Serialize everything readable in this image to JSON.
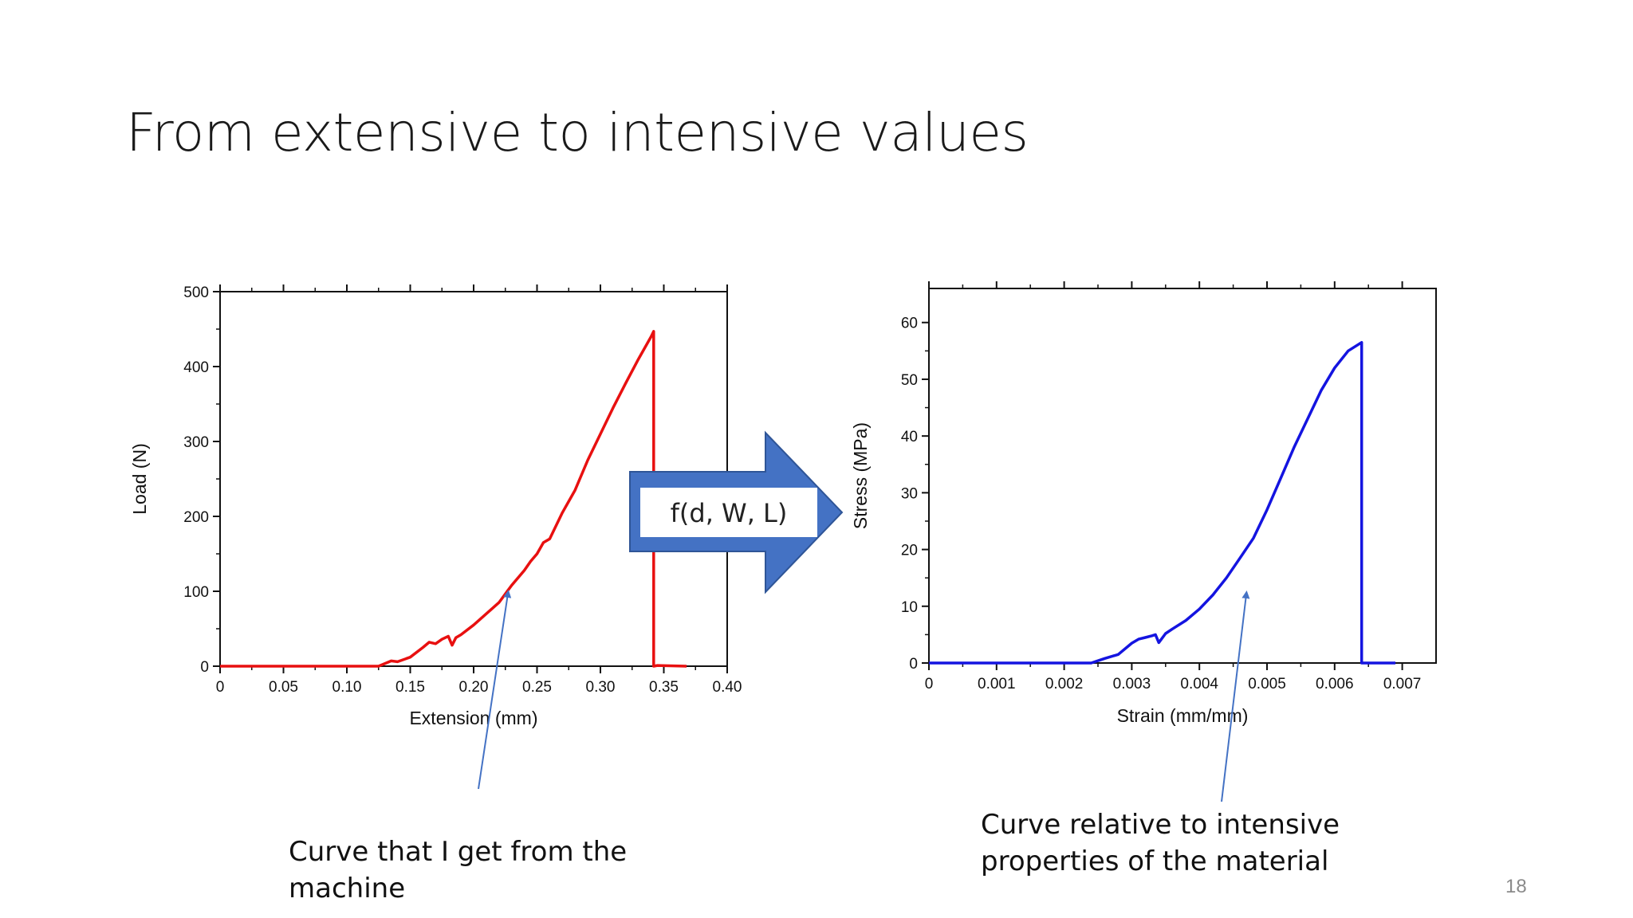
{
  "slide": {
    "title": "From extensive to intensive values",
    "page_number": "18",
    "left_caption_lines": [
      "Curve that I get from the",
      "machine"
    ],
    "right_caption_lines": [
      "Curve relative to intensive",
      "properties of the  material"
    ],
    "transform_label": "f(d, W, L)",
    "arrow_color": "#4472C4"
  },
  "chart_data": [
    {
      "type": "line",
      "title": "",
      "xlabel": "Extension (mm)",
      "ylabel": "Load (N)",
      "xlim": [
        0,
        0.4
      ],
      "ylim": [
        0,
        500
      ],
      "x_ticks": [
        0,
        0.05,
        0.1,
        0.15,
        0.2,
        0.25,
        0.3,
        0.35,
        0.4
      ],
      "x_tick_labels": [
        "0",
        "0.05",
        "0.10",
        "0.15",
        "0.20",
        "0.25",
        "0.30",
        "0.35",
        "0.40"
      ],
      "y_ticks": [
        0,
        100,
        200,
        300,
        400,
        500
      ],
      "y_tick_labels": [
        "0",
        "100",
        "200",
        "300",
        "400",
        "500"
      ],
      "color": "#E81010",
      "series": [
        {
          "name": "Load",
          "x": [
            0,
            0.125,
            0.135,
            0.14,
            0.15,
            0.16,
            0.165,
            0.17,
            0.175,
            0.18,
            0.183,
            0.186,
            0.19,
            0.2,
            0.21,
            0.22,
            0.23,
            0.24,
            0.245,
            0.25,
            0.255,
            0.26,
            0.27,
            0.28,
            0.29,
            0.3,
            0.31,
            0.32,
            0.33,
            0.34,
            0.342,
            0.342,
            0.345,
            0.368
          ],
          "y": [
            0,
            0,
            7,
            6,
            12,
            25,
            32,
            30,
            36,
            40,
            28,
            38,
            42,
            55,
            70,
            85,
            108,
            128,
            140,
            150,
            165,
            170,
            205,
            235,
            275,
            310,
            345,
            378,
            410,
            440,
            447,
            0,
            1,
            0
          ]
        }
      ]
    },
    {
      "type": "line",
      "title": "",
      "xlabel": "Strain (mm/mm)",
      "ylabel": "Stress (MPa)",
      "xlim": [
        0,
        0.0075
      ],
      "ylim": [
        0,
        66
      ],
      "x_ticks": [
        0,
        0.001,
        0.002,
        0.003,
        0.004,
        0.005,
        0.006,
        0.007
      ],
      "x_tick_labels": [
        "0",
        "0.001",
        "0.002",
        "0.003",
        "0.004",
        "0.005",
        "0.006",
        "0.007"
      ],
      "y_ticks": [
        0,
        10,
        20,
        30,
        40,
        50,
        60
      ],
      "y_tick_labels": [
        "0",
        "10",
        "20",
        "30",
        "40",
        "50",
        "60"
      ],
      "color": "#1414E0",
      "series": [
        {
          "name": "Stress",
          "x": [
            0,
            0.0024,
            0.0026,
            0.0028,
            0.003,
            0.0031,
            0.0032,
            0.0033,
            0.00335,
            0.0034,
            0.0035,
            0.0036,
            0.0038,
            0.004,
            0.0042,
            0.0044,
            0.0046,
            0.0048,
            0.005,
            0.0052,
            0.0054,
            0.0056,
            0.0058,
            0.006,
            0.0062,
            0.0064,
            0.0064,
            0.0066,
            0.0069
          ],
          "y": [
            0,
            0,
            0.8,
            1.5,
            3.5,
            4.2,
            4.5,
            4.8,
            5,
            3.6,
            5.2,
            6,
            7.5,
            9.5,
            12,
            15,
            18.5,
            22,
            27,
            32.5,
            38,
            43,
            48,
            52,
            55,
            56.5,
            0,
            0,
            0
          ]
        }
      ]
    }
  ]
}
